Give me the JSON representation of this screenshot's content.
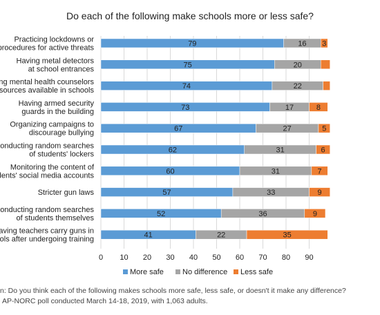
{
  "chart_data": {
    "type": "bar",
    "orientation": "horizontal",
    "stacked": true,
    "title": "Do each of the following make schools more or less safe?",
    "xlabel": "",
    "ylabel": "",
    "xlim": [
      0,
      100
    ],
    "xticks": [
      0,
      10,
      20,
      30,
      40,
      50,
      60,
      70,
      80,
      90
    ],
    "grid": true,
    "legend_position": "bottom",
    "categories": [
      [
        "Practicing lockdowns or",
        "procedures for active threats"
      ],
      [
        "Having metal detectors",
        "at school entrances"
      ],
      [
        "ing mental health counselors",
        "esources available in schools"
      ],
      [
        "Having armed security",
        "guards in the building"
      ],
      [
        "Organizing campaigns to",
        "discourage bullying"
      ],
      [
        "onducting random searches",
        "of students' lockers"
      ],
      [
        "Monitoring the content of",
        "dents' social media accounts"
      ],
      [
        "Stricter gun laws"
      ],
      [
        "Conducting random searches",
        "of students themselves"
      ],
      [
        "aving teachers carry guns in",
        "ools after undergoing training"
      ]
    ],
    "series": [
      {
        "name": "More safe",
        "color": "#5b9bd5",
        "values": [
          79,
          75,
          74,
          73,
          67,
          62,
          60,
          57,
          52,
          41
        ]
      },
      {
        "name": "No difference",
        "color": "#a5a5a5",
        "values": [
          16,
          20,
          22,
          17,
          27,
          31,
          31,
          33,
          36,
          22
        ]
      },
      {
        "name": "Less safe",
        "color": "#ed7d31",
        "values": [
          3,
          4,
          3,
          8,
          5,
          6,
          7,
          9,
          9,
          35
        ]
      }
    ],
    "data_labels": [
      [
        "79",
        "16",
        "3"
      ],
      [
        "75",
        "20",
        ""
      ],
      [
        "74",
        "22",
        ""
      ],
      [
        "73",
        "17",
        "8"
      ],
      [
        "67",
        "27",
        "5"
      ],
      [
        "62",
        "31",
        "6"
      ],
      [
        "60",
        "31",
        "7"
      ],
      [
        "57",
        "33",
        "9"
      ],
      [
        "52",
        "36",
        "9"
      ],
      [
        "41",
        "22",
        "35"
      ]
    ]
  },
  "notes": {
    "question": "n: Do you think each of the following makes schools more safe, less safe, or doesn't it make any difference?",
    "source": "AP-NORC poll conducted March 14-18, 2019, with 1,063 adults."
  }
}
